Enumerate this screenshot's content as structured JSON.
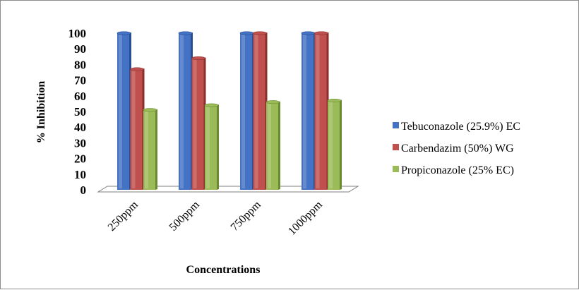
{
  "chart_data": {
    "type": "bar",
    "categories": [
      "250ppm",
      "500ppm",
      "750ppm",
      "1000ppm"
    ],
    "series": [
      {
        "name": "Tebuconazole (25.9%) EC",
        "color": "#4472C4",
        "dark": "#2a4e93",
        "values": [
          100,
          100,
          100,
          100
        ]
      },
      {
        "name": "Carbendazim (50%) WG",
        "color": "#C0504D",
        "dark": "#8a2f2c",
        "values": [
          77,
          84,
          100,
          100
        ]
      },
      {
        "name": "Propiconazole (25% EC)",
        "color": "#9BBB59",
        "dark": "#6a8a30",
        "values": [
          51,
          54,
          56,
          57
        ]
      }
    ],
    "title": "",
    "xlabel": "Concentrations",
    "ylabel": "% Inhibition",
    "ylim": [
      0,
      100
    ],
    "yticks": [
      0,
      10,
      20,
      30,
      40,
      50,
      60,
      70,
      80,
      90,
      100
    ],
    "grid": false,
    "legend": "right"
  }
}
